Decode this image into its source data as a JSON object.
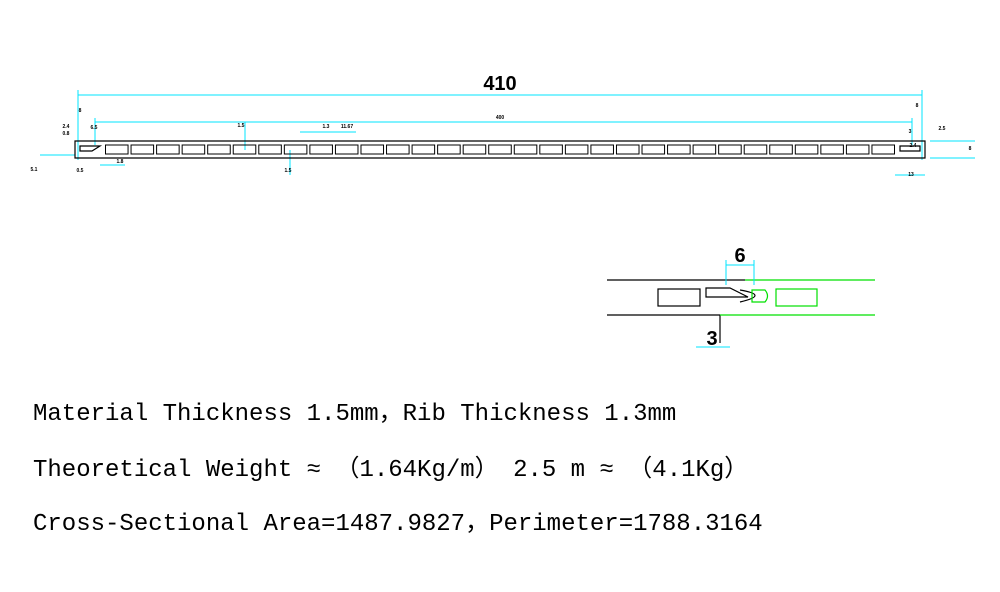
{
  "profile": {
    "overall_width": "410",
    "inner_width": "400",
    "labels": [
      "2.4",
      "0.8",
      "6.5",
      "5.1",
      "8",
      "0.5",
      "1.8",
      "1.5",
      "1.3",
      "11.67",
      "1.5",
      "8",
      "3",
      "2.4",
      "2.5",
      "8",
      "13"
    ]
  },
  "detail": {
    "top_dimension": "6",
    "bottom_dimension": "3"
  },
  "specs": [
    "Material Thickness 1.5mm，Rib Thickness 1.3mm",
    "Theoretical Weight ≈ （1.64Kg/m） 2.5 m ≈ （4.1Kg）",
    "Cross-Sectional Area=1487.9827，Perimeter=1788.3164"
  ]
}
